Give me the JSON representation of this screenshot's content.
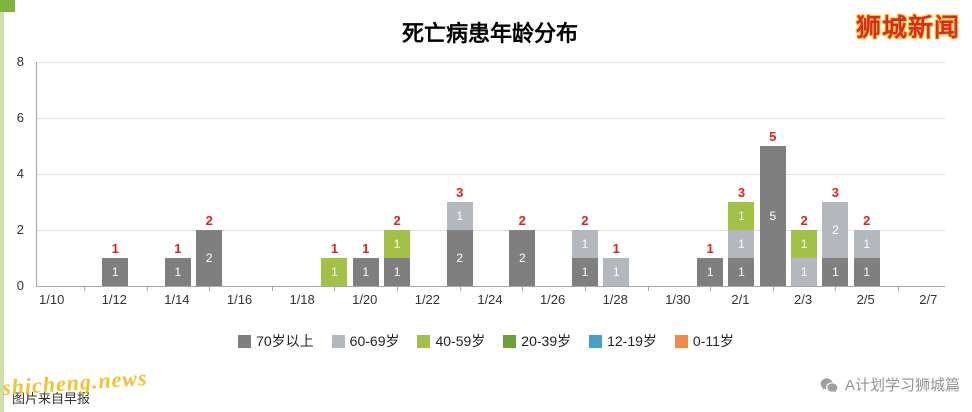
{
  "page": {
    "brand_top_right": "狮城新闻",
    "brand_bottom_right": "A计划学习狮城篇",
    "watermark": "shicheng.news",
    "caption_bottom_left": "图片来自早报"
  },
  "chart_data": {
    "type": "bar",
    "stacked": true,
    "title": "死亡病患年龄分布",
    "xlabel": "",
    "ylabel": "",
    "ylim": [
      0,
      8
    ],
    "y_ticks": [
      0,
      2,
      4,
      6,
      8
    ],
    "x_ticks": [
      "1/10",
      "1/12",
      "1/14",
      "1/16",
      "1/18",
      "1/20",
      "1/22",
      "1/24",
      "1/26",
      "1/28",
      "1/30",
      "2/1",
      "2/3",
      "2/5",
      "2/7"
    ],
    "grid": "horizontal",
    "legend_position": "bottom",
    "inside_label_color": "#ffffff",
    "total_label_color": "#e02020",
    "categories": [
      {
        "name": "70岁以上",
        "color": "#7f7f7f"
      },
      {
        "name": "60-69岁",
        "color": "#b2b8be"
      },
      {
        "name": "40-59岁",
        "color": "#a2c148"
      },
      {
        "name": "20-39岁",
        "color": "#6f9e3f"
      },
      {
        "name": "12-19岁",
        "color": "#4aa0c4"
      },
      {
        "name": "0-11岁",
        "color": "#f08a4b"
      }
    ],
    "bars": [
      {
        "date": "1/12",
        "total": 1,
        "segments": [
          {
            "category": "70岁以上",
            "value": 1
          }
        ]
      },
      {
        "date": "1/14",
        "total": 1,
        "segments": [
          {
            "category": "70岁以上",
            "value": 1
          }
        ]
      },
      {
        "date": "1/15",
        "total": 2,
        "segments": [
          {
            "category": "70岁以上",
            "value": 2
          }
        ]
      },
      {
        "date": "1/19",
        "total": 1,
        "segments": [
          {
            "category": "40-59岁",
            "value": 1
          }
        ]
      },
      {
        "date": "1/20",
        "total": 1,
        "segments": [
          {
            "category": "70岁以上",
            "value": 1
          }
        ]
      },
      {
        "date": "1/21",
        "total": 2,
        "segments": [
          {
            "category": "70岁以上",
            "value": 1
          },
          {
            "category": "40-59岁",
            "value": 1
          }
        ]
      },
      {
        "date": "1/23",
        "total": 3,
        "segments": [
          {
            "category": "70岁以上",
            "value": 2
          },
          {
            "category": "60-69岁",
            "value": 1
          }
        ]
      },
      {
        "date": "1/25",
        "total": 2,
        "segments": [
          {
            "category": "70岁以上",
            "value": 2
          }
        ]
      },
      {
        "date": "1/27",
        "total": 2,
        "segments": [
          {
            "category": "70岁以上",
            "value": 1
          },
          {
            "category": "60-69岁",
            "value": 1
          }
        ]
      },
      {
        "date": "1/28",
        "total": 1,
        "segments": [
          {
            "category": "60-69岁",
            "value": 1
          }
        ]
      },
      {
        "date": "1/31",
        "total": 1,
        "segments": [
          {
            "category": "70岁以上",
            "value": 1
          }
        ]
      },
      {
        "date": "2/1",
        "total": 3,
        "segments": [
          {
            "category": "70岁以上",
            "value": 1
          },
          {
            "category": "60-69岁",
            "value": 1
          },
          {
            "category": "40-59岁",
            "value": 1
          }
        ]
      },
      {
        "date": "2/2",
        "total": 5,
        "segments": [
          {
            "category": "70岁以上",
            "value": 5
          }
        ]
      },
      {
        "date": "2/3",
        "total": 2,
        "segments": [
          {
            "category": "60-69岁",
            "value": 1
          },
          {
            "category": "40-59岁",
            "value": 1
          }
        ]
      },
      {
        "date": "2/4",
        "total": 3,
        "segments": [
          {
            "category": "70岁以上",
            "value": 1
          },
          {
            "category": "60-69岁",
            "value": 2
          }
        ]
      },
      {
        "date": "2/5",
        "total": 2,
        "segments": [
          {
            "category": "70岁以上",
            "value": 1
          },
          {
            "category": "60-69岁",
            "value": 1
          }
        ]
      }
    ]
  }
}
